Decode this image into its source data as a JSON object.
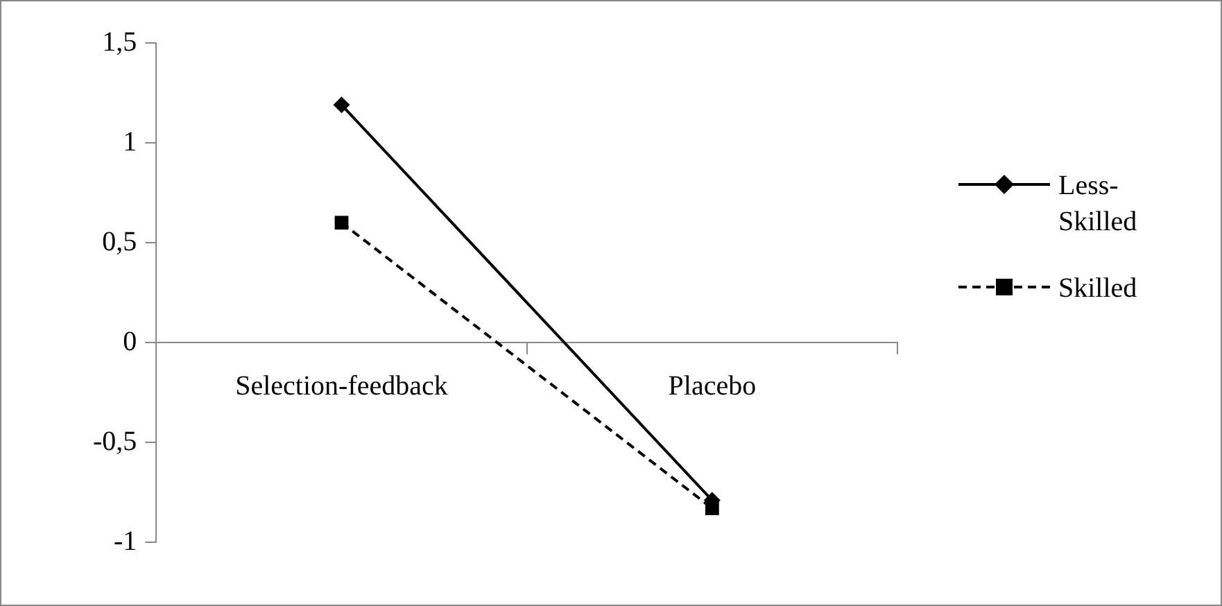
{
  "chart_data": {
    "type": "line",
    "categories": [
      "Selection-feedback",
      "Placebo"
    ],
    "series": [
      {
        "name": "Less-Skilled",
        "color": "#000000",
        "values": [
          1.19,
          -0.79
        ],
        "marker": "diamond",
        "line_style": "solid"
      },
      {
        "name": "Skilled",
        "color": "#000000",
        "values": [
          0.6,
          -0.83
        ],
        "marker": "square",
        "line_style": "dashed"
      }
    ],
    "ylim": [
      -1,
      1.5
    ],
    "yticks": [
      {
        "value": -1,
        "label": "-1"
      },
      {
        "value": -0.5,
        "label": "-0,5"
      },
      {
        "value": 0,
        "label": "0"
      },
      {
        "value": 0.5,
        "label": "0,5"
      },
      {
        "value": 1,
        "label": "1"
      },
      {
        "value": 1.5,
        "label": "1,5"
      }
    ],
    "grid": false,
    "legend": "right"
  }
}
